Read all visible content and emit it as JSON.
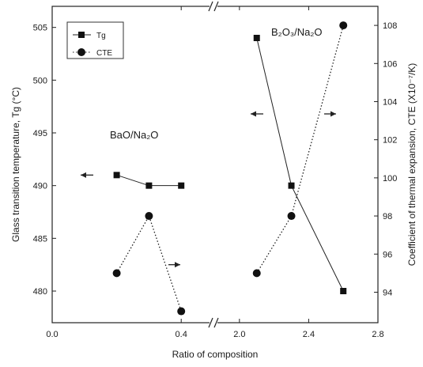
{
  "chart_data": {
    "type": "line",
    "x_axis": {
      "label": "Ratio of composition",
      "broken": true,
      "segments": [
        {
          "range": [
            0.0,
            0.5
          ],
          "ticks": [
            "0.0",
            "0.4"
          ],
          "tick_values": [
            0.0,
            0.4
          ]
        },
        {
          "range": [
            1.85,
            2.8
          ],
          "ticks": [
            "2.0",
            "2.4",
            "2.8"
          ],
          "tick_values": [
            2.0,
            2.4,
            2.8
          ]
        }
      ]
    },
    "y_left": {
      "label": "Glass transition temperature, Tg (°C)",
      "range": [
        477,
        507
      ],
      "ticks": [
        480,
        485,
        490,
        495,
        500,
        505
      ]
    },
    "y_right": {
      "label": "Coefficient of thermal expansion, CTE (X10⁻⁷/K)",
      "range": [
        92.4,
        109.0
      ],
      "ticks": [
        94,
        96,
        98,
        100,
        102,
        104,
        106,
        108
      ]
    },
    "legend": {
      "position": "top-left",
      "entries": [
        {
          "label": "Tg",
          "marker": "square",
          "line": "solid"
        },
        {
          "label": "CTE",
          "marker": "circle",
          "line": "dotted"
        }
      ]
    },
    "annotations": {
      "bao": "BaO/Na₂O",
      "b2o3": "B₂O₃/Na₂O"
    },
    "series": [
      {
        "group": "BaO/Na2O",
        "legend": "Tg",
        "axis": "left",
        "marker": "square",
        "line": "solid",
        "x": [
          0.2,
          0.3,
          0.4
        ],
        "y": [
          491,
          490,
          490
        ]
      },
      {
        "group": "BaO/Na2O",
        "legend": "CTE",
        "axis": "right",
        "marker": "circle",
        "line": "dotted",
        "x": [
          0.2,
          0.3,
          0.4
        ],
        "y": [
          95,
          98,
          93
        ]
      },
      {
        "group": "B2O3/Na2O",
        "legend": "Tg",
        "axis": "left",
        "marker": "square",
        "line": "solid",
        "x": [
          2.1,
          2.3,
          2.6
        ],
        "y": [
          504,
          490,
          480
        ]
      },
      {
        "group": "B2O3/Na2O",
        "legend": "CTE",
        "axis": "right",
        "marker": "circle",
        "line": "dotted",
        "x": [
          2.1,
          2.3,
          2.6
        ],
        "y": [
          95,
          98,
          108
        ]
      }
    ],
    "indicator_arrows": [
      {
        "near": "BaO/Na2O Tg",
        "points_to": "left"
      },
      {
        "near": "BaO/Na2O CTE",
        "points_to": "right"
      },
      {
        "near": "B2O3/Na2O Tg",
        "points_to": "left"
      },
      {
        "near": "B2O3/Na2O CTE",
        "points_to": "right"
      }
    ],
    "grid": false
  }
}
